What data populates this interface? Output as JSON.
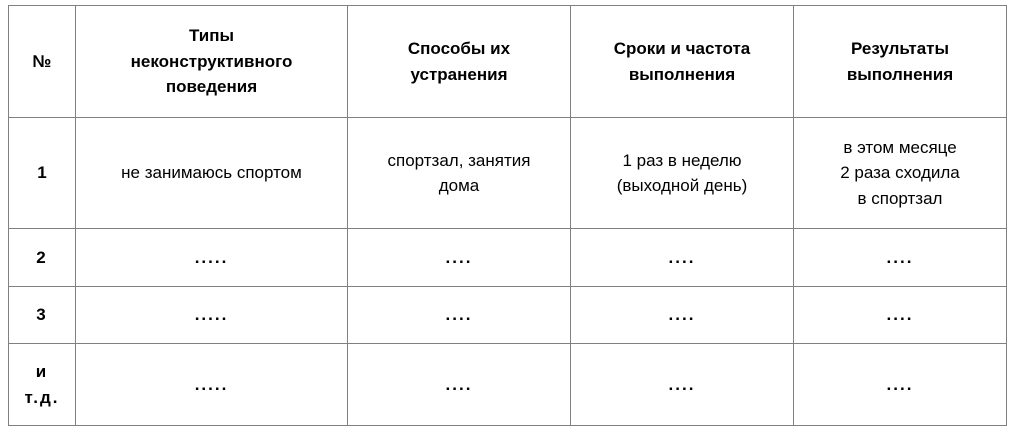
{
  "table": {
    "header": {
      "num": "№",
      "columns": [
        "Типы\nнеконструктивного\nповедения",
        "Способы их\nустранения",
        "Сроки и частота\nвыполнения",
        "Результаты\nвыполнения"
      ]
    },
    "rows": [
      {
        "num": "1",
        "cells": [
          "не занимаюсь спортом",
          "спортзал, занятия\nдома",
          "1 раз в неделю\n(выходной день)",
          "в этом месяце\n2 раза сходила\nв спортзал"
        ]
      },
      {
        "num": "2",
        "cells": [
          ".....",
          "....",
          "....",
          "...."
        ]
      },
      {
        "num": "3",
        "cells": [
          ".....",
          "....",
          "....",
          "...."
        ]
      },
      {
        "num": "и\nт.д.",
        "cells": [
          ".....",
          "....",
          "....",
          "...."
        ]
      }
    ]
  }
}
